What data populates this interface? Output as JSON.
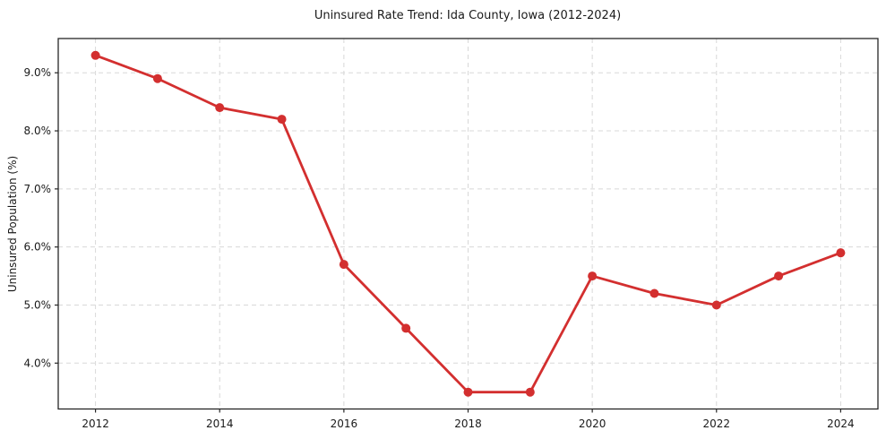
{
  "window": {
    "title": "Uninsured Rate Trend: Ida County, Iowa (2012-2024)"
  },
  "chart_data": {
    "type": "line",
    "title": "Uninsured Rate Trend: Ida County, Iowa (2012-2024)",
    "xlabel": "",
    "ylabel": "Uninsured Population (%)",
    "x": [
      2012,
      2013,
      2014,
      2015,
      2016,
      2017,
      2018,
      2019,
      2020,
      2021,
      2022,
      2023,
      2024
    ],
    "values": [
      9.3,
      8.9,
      8.4,
      8.2,
      5.7,
      4.6,
      3.5,
      3.5,
      5.5,
      5.2,
      5.0,
      5.5,
      5.9
    ],
    "x_ticks": [
      2012,
      2014,
      2016,
      2018,
      2020,
      2022,
      2024
    ],
    "x_tick_labels": [
      "2012",
      "2014",
      "2016",
      "2018",
      "2020",
      "2022",
      "2024"
    ],
    "y_ticks": [
      4.0,
      5.0,
      6.0,
      7.0,
      8.0,
      9.0
    ],
    "y_tick_labels": [
      "4.0%",
      "5.0%",
      "6.0%",
      "7.0%",
      "8.0%",
      "9.0%"
    ],
    "xlim": [
      2011.4,
      2024.6
    ],
    "ylim": [
      3.21,
      9.59
    ],
    "grid": true,
    "grid_style": "dashed",
    "legend": false,
    "line_color": "#d32f2f",
    "marker": "circle",
    "grid_color": "#d8d8d8",
    "spine_color": "#262626",
    "text_color": "#1a1a1a",
    "background": "#ffffff"
  }
}
